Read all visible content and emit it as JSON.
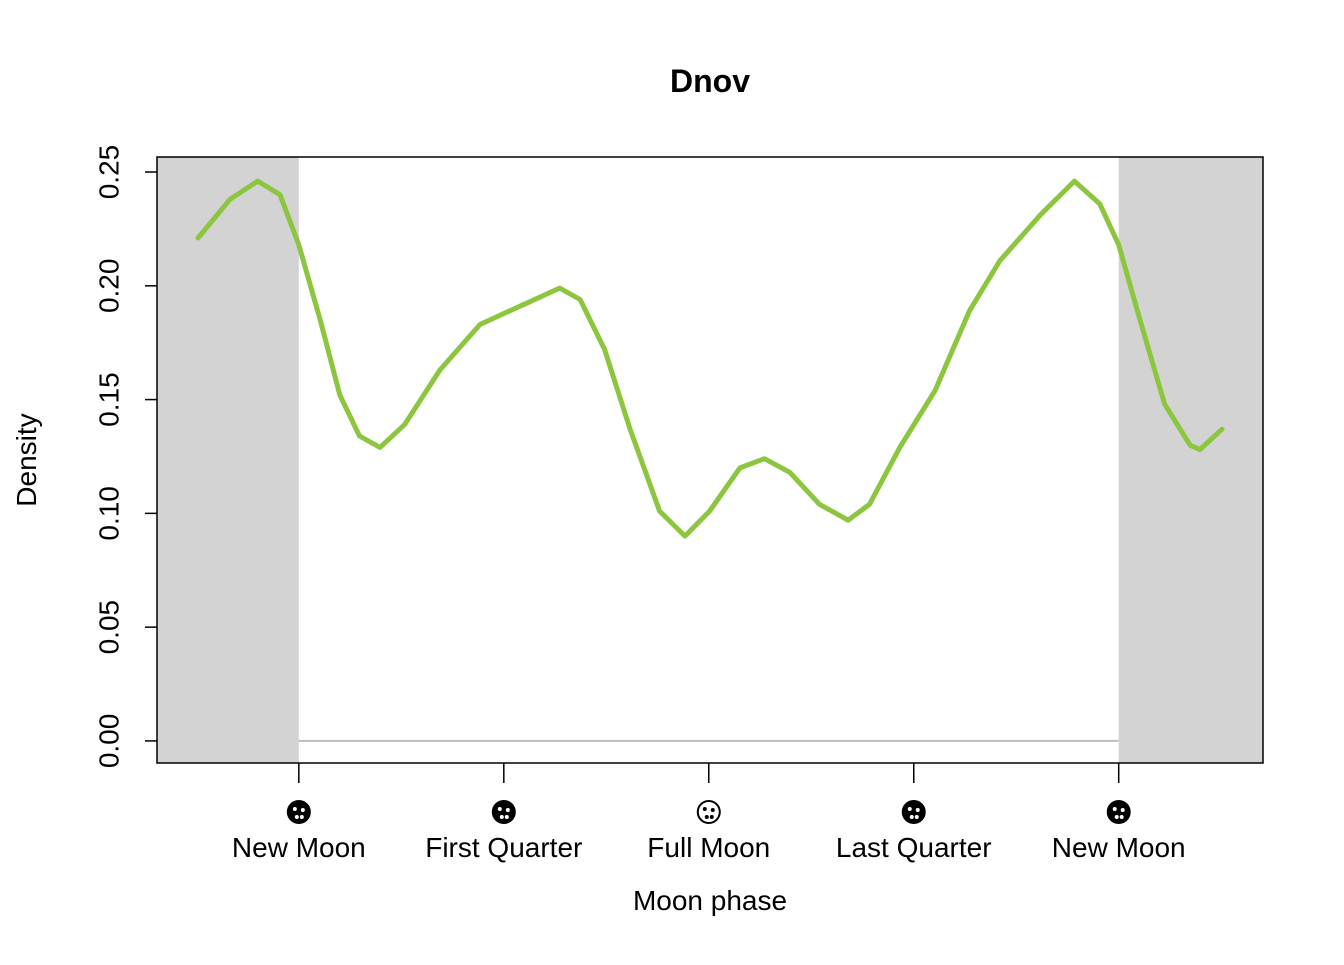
{
  "chart_data": {
    "type": "line",
    "title": "Dnov",
    "xlabel": "Moon phase",
    "ylabel": "Density",
    "x": [
      -0.123,
      -0.084,
      -0.05,
      -0.023,
      0,
      0.026,
      0.05,
      0.074,
      0.099,
      0.129,
      0.172,
      0.221,
      0.251,
      0.282,
      0.318,
      0.343,
      0.373,
      0.404,
      0.44,
      0.471,
      0.501,
      0.538,
      0.568,
      0.599,
      0.635,
      0.67,
      0.696,
      0.733,
      0.776,
      0.818,
      0.855,
      0.904,
      0.946,
      0.977,
      1,
      1.026,
      1.056,
      1.087,
      1.099,
      1.126
    ],
    "series": [
      {
        "color": "#8cc63f",
        "values": [
          0.221,
          0.238,
          0.246,
          0.24,
          0.218,
          0.185,
          0.152,
          0.134,
          0.129,
          0.139,
          0.163,
          0.183,
          0.188,
          0.193,
          0.199,
          0.194,
          0.172,
          0.137,
          0.101,
          0.09,
          0.101,
          0.12,
          0.124,
          0.118,
          0.104,
          0.097,
          0.104,
          0.129,
          0.154,
          0.189,
          0.211,
          0.231,
          0.246,
          0.236,
          0.218,
          0.185,
          0.148,
          0.13,
          0.128,
          0.137
        ]
      }
    ],
    "xlim": [
      -0.173,
      1.176
    ],
    "xticks": [
      {
        "value": 0,
        "label": "New Moon"
      },
      {
        "value": 0.25,
        "label": "First Quarter"
      },
      {
        "value": 0.5,
        "label": "Full Moon"
      },
      {
        "value": 0.75,
        "label": "Last Quarter"
      },
      {
        "value": 1,
        "label": "New Moon"
      }
    ],
    "ylim": [
      -0.0097,
      0.2566
    ],
    "yticks": [
      {
        "value": 0,
        "label": "0.00"
      },
      {
        "value": 0.05,
        "label": "0.05"
      },
      {
        "value": 0.1,
        "label": "0.10"
      },
      {
        "value": 0.15,
        "label": "0.15"
      },
      {
        "value": 0.2,
        "label": "0.20"
      },
      {
        "value": 0.25,
        "label": "0.25"
      }
    ],
    "shade_color": "#d3d3d3"
  }
}
